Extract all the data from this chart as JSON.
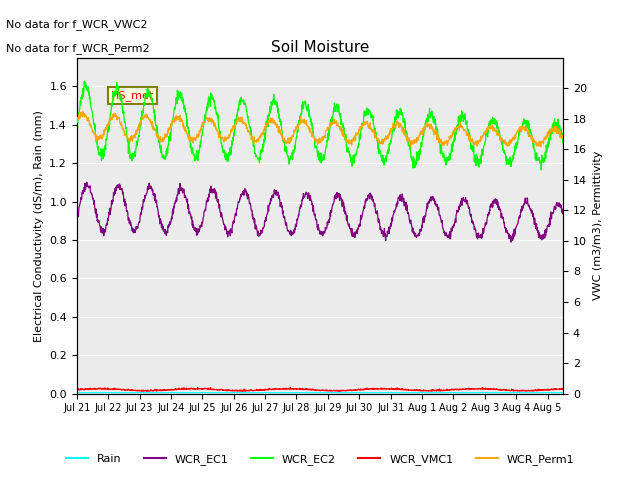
{
  "title": "Soil Moisture",
  "ylabel_left": "Electrical Conductivity (dS/m), Rain (mm)",
  "ylabel_right": "VWC (m3/m3), Permittivity",
  "annotations": [
    "No data for f_WCR_VWC2",
    "No data for f_WCR_Perm2"
  ],
  "hs_met_label": "HS_met",
  "ylim_left": [
    0.0,
    1.75
  ],
  "ylim_right": [
    0,
    22
  ],
  "legend_entries": [
    "Rain",
    "WCR_EC1",
    "WCR_EC2",
    "WCR_VMC1",
    "WCR_Perm1"
  ],
  "line_colors": {
    "Rain": "cyan",
    "WCR_EC1": "purple",
    "WCR_EC2": "lime",
    "WCR_VMC1": "red",
    "WCR_Perm1": "orange"
  },
  "background_color": "#ebebeb",
  "date_labels": [
    "Jul 21",
    "Jul 22",
    "Jul 23",
    "Jul 24",
    "Jul 25",
    "Jul 26",
    "Jul 27",
    "Jul 28",
    "Jul 29",
    "Jul 30",
    "Jul 31",
    "Aug 1",
    "Aug 2",
    "Aug 3",
    "Aug 4",
    "Aug 5"
  ]
}
